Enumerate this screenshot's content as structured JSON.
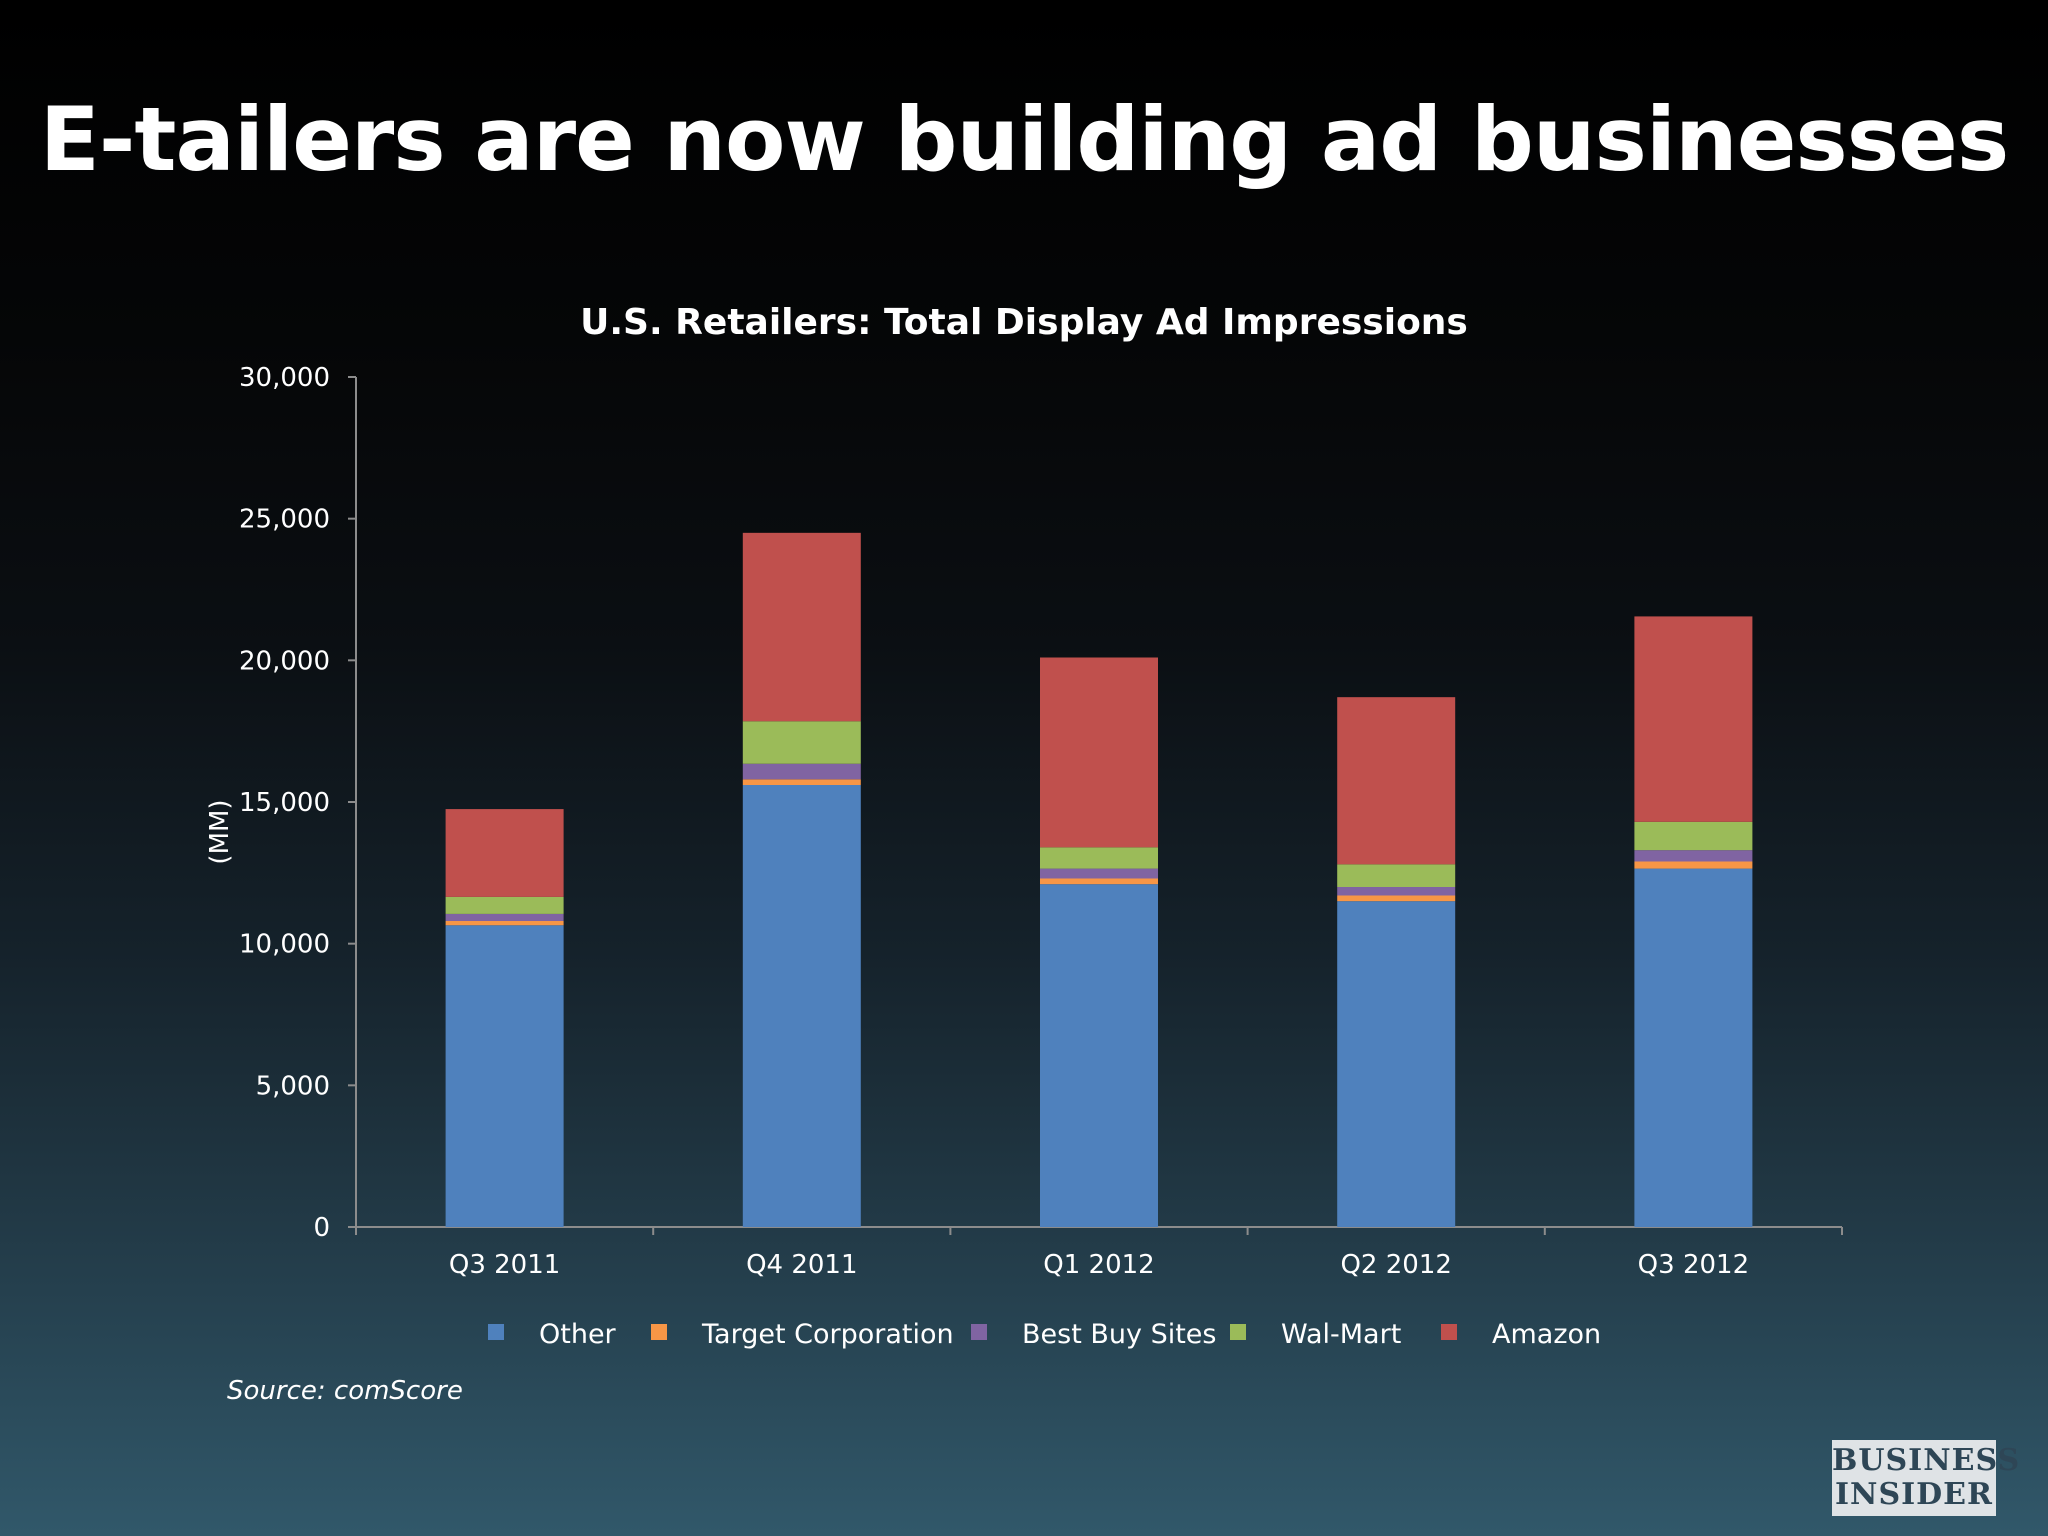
{
  "slide": {
    "title": "E-tailers are now building ad businesses",
    "source": "Source: comScore",
    "logo_line1": "BUSINESS",
    "logo_line2": "INSIDER"
  },
  "colors": {
    "Other": "#4f81bd",
    "Target Corporation": "#f79646",
    "Best Buy Sites": "#8064a2",
    "Wal-Mart": "#9bbb59",
    "Amazon": "#c0504d",
    "axis": "#8c8c8c"
  },
  "chart_data": {
    "type": "bar",
    "stacked": true,
    "title": "U.S. Retailers: Total Display Ad Impressions",
    "xlabel": "",
    "ylabel": "(MM)",
    "ylim": [
      0,
      30000
    ],
    "yticks": [
      0,
      5000,
      10000,
      15000,
      20000,
      25000,
      30000
    ],
    "ytick_labels": [
      "0",
      "5,000",
      "10,000",
      "15,000",
      "20,000",
      "25,000",
      "30,000"
    ],
    "grid": false,
    "legend_position": "bottom",
    "categories": [
      "Q3 2011",
      "Q4 2011",
      "Q1 2012",
      "Q2 2012",
      "Q3 2012"
    ],
    "series": [
      {
        "name": "Other",
        "values": [
          10650,
          15600,
          12100,
          11500,
          12650
        ]
      },
      {
        "name": "Target Corporation",
        "values": [
          150,
          200,
          200,
          200,
          250
        ]
      },
      {
        "name": "Best Buy Sites",
        "values": [
          250,
          550,
          350,
          300,
          400
        ]
      },
      {
        "name": "Wal-Mart",
        "values": [
          600,
          1500,
          750,
          800,
          1000
        ]
      },
      {
        "name": "Amazon",
        "values": [
          3100,
          6650,
          6700,
          5900,
          7250
        ]
      }
    ]
  }
}
